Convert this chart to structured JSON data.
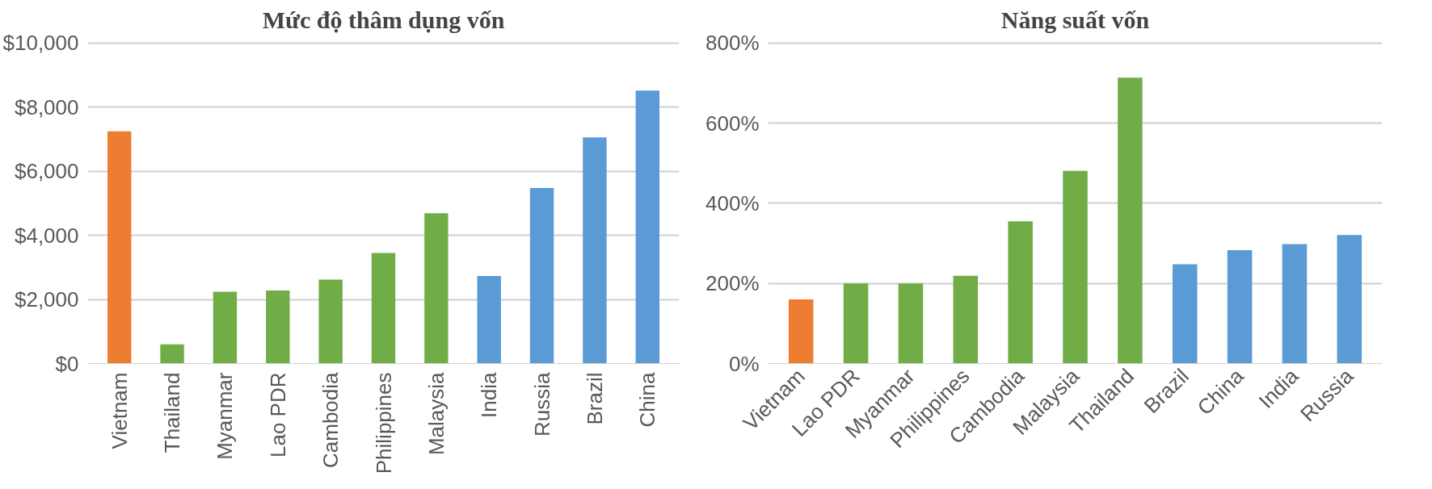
{
  "chart_data": [
    {
      "type": "bar",
      "title": "Mức độ thâm dụng vốn",
      "categories": [
        "Vietnam",
        "Thailand",
        "Myanmar",
        "Lao PDR",
        "Cambodia",
        "Philippines",
        "Malaysia",
        "India",
        "Russia",
        "Brazil",
        "China"
      ],
      "values": [
        7250,
        600,
        2240,
        2280,
        2620,
        3450,
        4690,
        2730,
        5480,
        7060,
        8520
      ],
      "colors": [
        "#ed7d31",
        "#70ad47",
        "#70ad47",
        "#70ad47",
        "#70ad47",
        "#70ad47",
        "#70ad47",
        "#5b9bd5",
        "#5b9bd5",
        "#5b9bd5",
        "#5b9bd5"
      ],
      "ylim": [
        0,
        10000
      ],
      "yticks": [
        {
          "value": 0,
          "label": "$0"
        },
        {
          "value": 2000,
          "label": "$2,000"
        },
        {
          "value": 4000,
          "label": "$4,000"
        },
        {
          "value": 6000,
          "label": "$6,000"
        },
        {
          "value": 8000,
          "label": "$8,000"
        },
        {
          "value": 10000,
          "label": "$10,000"
        }
      ],
      "grid": "y"
    },
    {
      "type": "bar",
      "title": "Năng suất vốn",
      "categories": [
        "Vietnam",
        "Lao PDR",
        "Myanmar",
        "Philippines",
        "Cambodia",
        "Malaysia",
        "Thailand",
        "Brazil",
        "China",
        "India",
        "Russia"
      ],
      "values": [
        160,
        200,
        200,
        219,
        355,
        481,
        714,
        248,
        283,
        298,
        321
      ],
      "colors": [
        "#ed7d31",
        "#70ad47",
        "#70ad47",
        "#70ad47",
        "#70ad47",
        "#70ad47",
        "#70ad47",
        "#5b9bd5",
        "#5b9bd5",
        "#5b9bd5",
        "#5b9bd5"
      ],
      "ylim": [
        0,
        800
      ],
      "yticks": [
        {
          "value": 0,
          "label": "0%"
        },
        {
          "value": 200,
          "label": "200%"
        },
        {
          "value": 400,
          "label": "400%"
        },
        {
          "value": 600,
          "label": "600%"
        },
        {
          "value": 800,
          "label": "800%"
        }
      ],
      "grid": "y"
    }
  ]
}
